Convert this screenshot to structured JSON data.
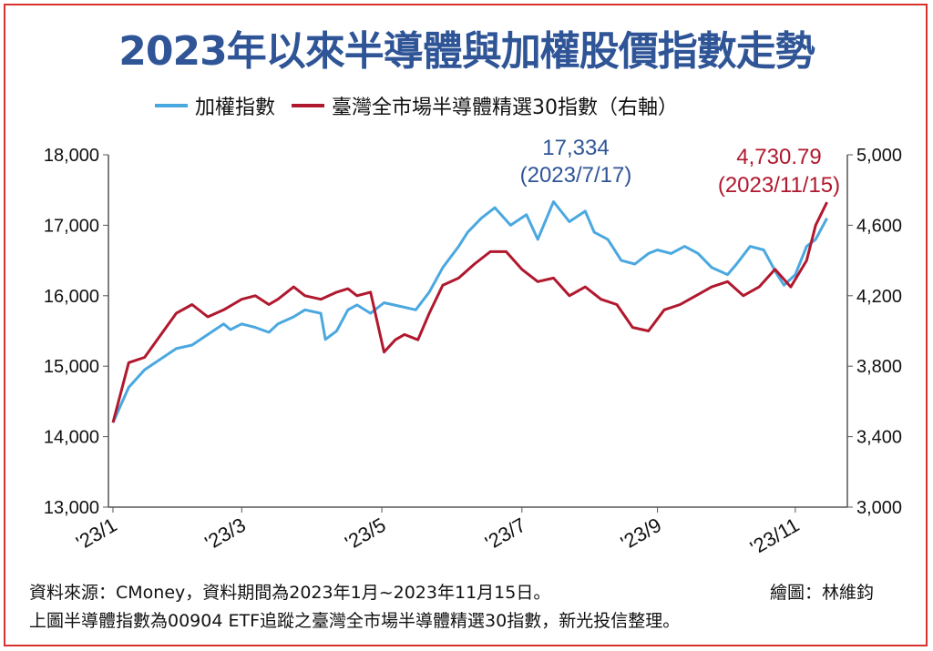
{
  "title": "2023年以來半導體與加權股價指數走勢",
  "legend": {
    "taiex": "加權指數",
    "semi": "臺灣全市場半導體精選30指數（右軸）"
  },
  "colors": {
    "taiex": "#4aa8e0",
    "semi": "#b0182e",
    "title": "#2f5597",
    "frame": "#d7322d"
  },
  "annotations": {
    "peak_value": "17,334",
    "peak_date": "(2023/7/17)",
    "last_value": "4,730.79",
    "last_date": "(2023/11/15)"
  },
  "footer": {
    "source": "資料來源：CMoney，資料期間為2023年1月~2023年11月15日。",
    "credit": "繪圖：林維鈞",
    "note": "上圖半導體指數為00904 ETF追蹤之臺灣全市場半導體精選30指數，新光投信整理。"
  },
  "chart_data": {
    "type": "line",
    "x_ticks": [
      "'23/1",
      "'23/3",
      "'23/5",
      "'23/7",
      "'23/9",
      "'23/11"
    ],
    "y_left": {
      "ticks": [
        "18,000",
        "17,000",
        "16,000",
        "15,000",
        "14,000",
        "13,000"
      ],
      "ylim": [
        13000,
        18000
      ]
    },
    "y_right": {
      "ticks": [
        "5,000",
        "4,600",
        "4,200",
        "3,800",
        "3,400",
        "3,000"
      ],
      "ylim": [
        3000,
        5000
      ]
    },
    "series": [
      {
        "name": "加權指數",
        "axis": "left",
        "points": [
          [
            "2023-01-03",
            14200
          ],
          [
            "2023-01-10",
            14700
          ],
          [
            "2023-01-17",
            14950
          ],
          [
            "2023-01-31",
            15250
          ],
          [
            "2023-02-07",
            15300
          ],
          [
            "2023-02-14",
            15450
          ],
          [
            "2023-02-21",
            15600
          ],
          [
            "2023-02-24",
            15520
          ],
          [
            "2023-03-01",
            15600
          ],
          [
            "2023-03-07",
            15550
          ],
          [
            "2023-03-13",
            15480
          ],
          [
            "2023-03-17",
            15600
          ],
          [
            "2023-03-24",
            15700
          ],
          [
            "2023-03-29",
            15800
          ],
          [
            "2023-04-05",
            15750
          ],
          [
            "2023-04-07",
            15380
          ],
          [
            "2023-04-12",
            15500
          ],
          [
            "2023-04-17",
            15800
          ],
          [
            "2023-04-21",
            15870
          ],
          [
            "2023-04-27",
            15750
          ],
          [
            "2023-05-03",
            15900
          ],
          [
            "2023-05-10",
            15850
          ],
          [
            "2023-05-17",
            15800
          ],
          [
            "2023-05-23",
            16050
          ],
          [
            "2023-05-29",
            16400
          ],
          [
            "2023-06-05",
            16700
          ],
          [
            "2023-06-09",
            16900
          ],
          [
            "2023-06-15",
            17100
          ],
          [
            "2023-06-21",
            17250
          ],
          [
            "2023-06-28",
            17000
          ],
          [
            "2023-07-05",
            17150
          ],
          [
            "2023-07-10",
            16800
          ],
          [
            "2023-07-17",
            17334
          ],
          [
            "2023-07-24",
            17050
          ],
          [
            "2023-07-31",
            17200
          ],
          [
            "2023-08-04",
            16900
          ],
          [
            "2023-08-10",
            16800
          ],
          [
            "2023-08-16",
            16500
          ],
          [
            "2023-08-22",
            16450
          ],
          [
            "2023-08-28",
            16600
          ],
          [
            "2023-09-01",
            16650
          ],
          [
            "2023-09-07",
            16600
          ],
          [
            "2023-09-13",
            16700
          ],
          [
            "2023-09-19",
            16600
          ],
          [
            "2023-09-25",
            16400
          ],
          [
            "2023-10-02",
            16300
          ],
          [
            "2023-10-06",
            16450
          ],
          [
            "2023-10-12",
            16700
          ],
          [
            "2023-10-18",
            16650
          ],
          [
            "2023-10-24",
            16300
          ],
          [
            "2023-10-27",
            16150
          ],
          [
            "2023-11-01",
            16300
          ],
          [
            "2023-11-06",
            16700
          ],
          [
            "2023-11-10",
            16800
          ],
          [
            "2023-11-15",
            17100
          ]
        ]
      },
      {
        "name": "臺灣全市場半導體精選30指數",
        "axis": "right",
        "points": [
          [
            "2023-01-03",
            3480
          ],
          [
            "2023-01-10",
            3820
          ],
          [
            "2023-01-17",
            3850
          ],
          [
            "2023-01-31",
            4100
          ],
          [
            "2023-02-07",
            4150
          ],
          [
            "2023-02-14",
            4080
          ],
          [
            "2023-02-21",
            4120
          ],
          [
            "2023-03-01",
            4180
          ],
          [
            "2023-03-07",
            4200
          ],
          [
            "2023-03-13",
            4150
          ],
          [
            "2023-03-17",
            4180
          ],
          [
            "2023-03-24",
            4250
          ],
          [
            "2023-03-29",
            4200
          ],
          [
            "2023-04-05",
            4180
          ],
          [
            "2023-04-12",
            4220
          ],
          [
            "2023-04-17",
            4240
          ],
          [
            "2023-04-21",
            4200
          ],
          [
            "2023-04-27",
            4220
          ],
          [
            "2023-05-03",
            3880
          ],
          [
            "2023-05-08",
            3950
          ],
          [
            "2023-05-12",
            3980
          ],
          [
            "2023-05-18",
            3950
          ],
          [
            "2023-05-23",
            4100
          ],
          [
            "2023-05-29",
            4260
          ],
          [
            "2023-06-05",
            4300
          ],
          [
            "2023-06-12",
            4380
          ],
          [
            "2023-06-19",
            4450
          ],
          [
            "2023-06-26",
            4450
          ],
          [
            "2023-07-03",
            4350
          ],
          [
            "2023-07-10",
            4280
          ],
          [
            "2023-07-17",
            4300
          ],
          [
            "2023-07-24",
            4200
          ],
          [
            "2023-07-31",
            4250
          ],
          [
            "2023-08-07",
            4180
          ],
          [
            "2023-08-14",
            4150
          ],
          [
            "2023-08-21",
            4020
          ],
          [
            "2023-08-28",
            4000
          ],
          [
            "2023-09-04",
            4120
          ],
          [
            "2023-09-11",
            4150
          ],
          [
            "2023-09-18",
            4200
          ],
          [
            "2023-09-25",
            4250
          ],
          [
            "2023-10-02",
            4280
          ],
          [
            "2023-10-09",
            4200
          ],
          [
            "2023-10-16",
            4250
          ],
          [
            "2023-10-23",
            4350
          ],
          [
            "2023-10-30",
            4250
          ],
          [
            "2023-11-06",
            4400
          ],
          [
            "2023-11-10",
            4600
          ],
          [
            "2023-11-15",
            4730.79
          ]
        ]
      }
    ]
  }
}
